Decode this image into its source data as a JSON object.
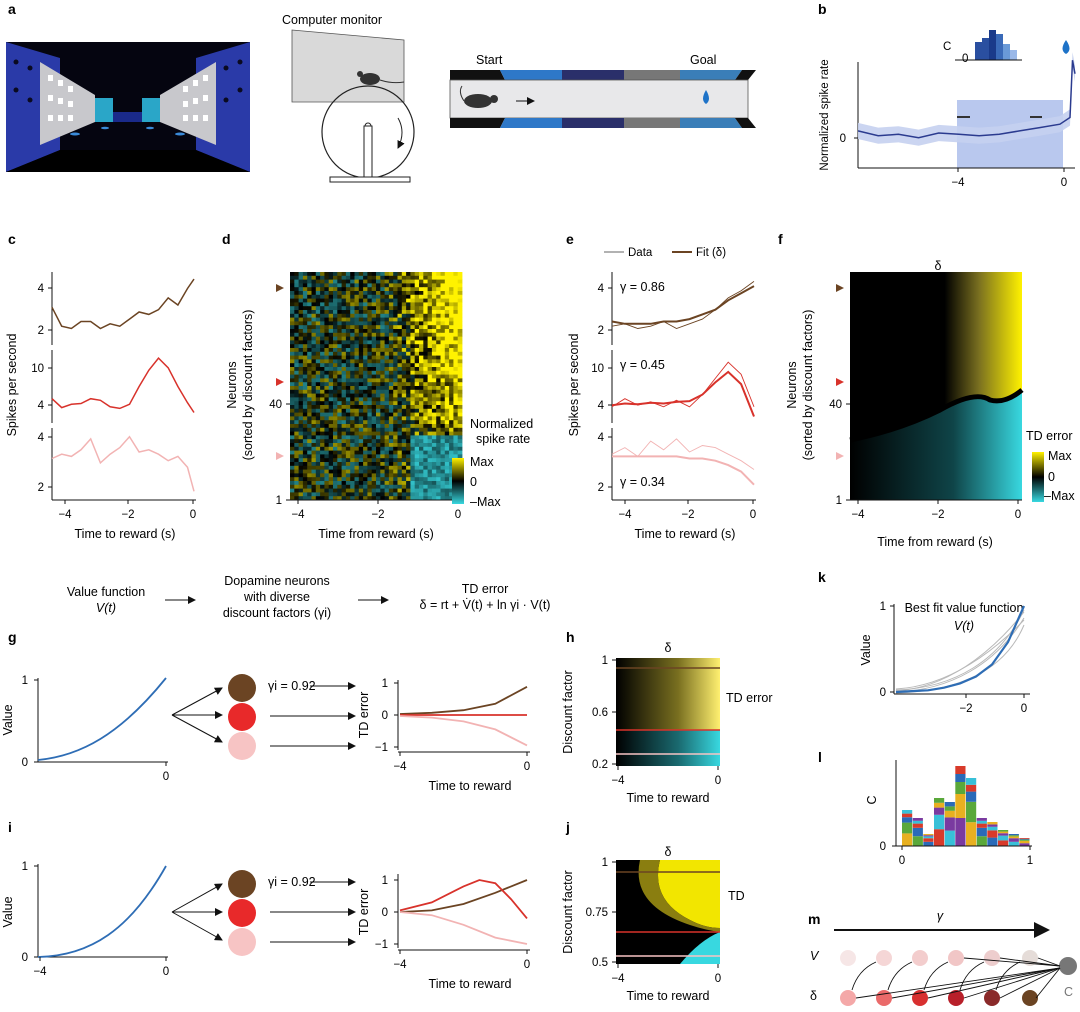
{
  "panels": {
    "a": {
      "letter": "a",
      "monitor_label": "Computer monitor",
      "start_label": "Start",
      "goal_label": "Goal"
    },
    "b": {
      "letter": "b",
      "ylabel": "Normalized spike rate",
      "y_tick": "0",
      "x_ticks": [
        "−4",
        "0"
      ],
      "inset_tick": "0",
      "inset_ylabel": "C"
    },
    "c": {
      "letter": "c",
      "ylabel": "Spikes per second",
      "xlabel": "Time to reward (s)",
      "x_ticks": [
        "−4",
        "−2",
        "0"
      ],
      "sub_yticks": [
        [
          "4",
          "2"
        ],
        [
          "10",
          "4"
        ],
        [
          "4",
          "2"
        ]
      ]
    },
    "d": {
      "letter": "d",
      "ylabel1": "Neurons",
      "ylabel2": "(sorted by discount factors)",
      "y_ticks": [
        "40",
        "1"
      ],
      "xlabel": "Time from reward (s)",
      "x_ticks": [
        "−4",
        "−2",
        "0"
      ],
      "cbar_title1": "Normalized",
      "cbar_title2": "spike rate",
      "cbar_ticks": [
        "Max",
        "0",
        "–Max"
      ]
    },
    "e": {
      "letter": "e",
      "legend_data": "Data",
      "legend_fit": "Fit (δ)",
      "ylabel": "Spikes per second",
      "xlabel": "Time to reward (s)",
      "x_ticks": [
        "−4",
        "−2",
        "0"
      ],
      "gammas": [
        "γ = 0.86",
        "γ = 0.45",
        "γ = 0.34"
      ],
      "sub_yticks": [
        [
          "4",
          "2"
        ],
        [
          "10",
          "4"
        ],
        [
          "4",
          "2"
        ]
      ]
    },
    "f": {
      "letter": "f",
      "top_label": "δ",
      "ylabel1": "Neurons",
      "ylabel2": "(sorted by discount factors)",
      "y_ticks": [
        "40",
        "1"
      ],
      "xlabel": "Time from reward (s)",
      "x_ticks": [
        "−4",
        "−2",
        "0"
      ],
      "cbar_title": "TD error",
      "cbar_ticks": [
        "Max",
        "0",
        "–Max"
      ]
    },
    "flow": {
      "value_fn": "Value function",
      "value_fn_sym": "V(t)",
      "dopa1": "Dopamine neurons",
      "dopa2": "with diverse",
      "dopa3": "discount factors (γi)",
      "td_title": "TD error",
      "td_eq": "δ = rt + V̇(t) + ln γi · V(t)"
    },
    "g": {
      "letter": "g",
      "ylabel": "Value",
      "y_ticks": [
        "1",
        "0"
      ],
      "x_tick": "0",
      "gamma_label": "γi = 0.92",
      "td_ylabel": "TD error",
      "td_yticks": [
        "1",
        "0",
        "−1"
      ],
      "td_xticks": [
        "−4",
        "0"
      ],
      "td_xlabel": "Time to reward"
    },
    "h": {
      "letter": "h",
      "top_label": "δ",
      "ylabel": "Discount factor",
      "y_ticks": [
        "1",
        "0.6",
        "0.2"
      ],
      "x_ticks": [
        "−4",
        "0"
      ],
      "xlabel": "Time to reward",
      "cbar_title": "TD error"
    },
    "i": {
      "letter": "i",
      "ylabel": "Value",
      "y_ticks": [
        "1",
        "0"
      ],
      "x_ticks": [
        "−4",
        "0"
      ],
      "gamma_label": "γi = 0.92",
      "td_ylabel": "TD error",
      "td_yticks": [
        "1",
        "0",
        "−1"
      ],
      "td_xticks": [
        "−4",
        "0"
      ],
      "td_xlabel": "Time to reward"
    },
    "j": {
      "letter": "j",
      "top_label": "δ",
      "ylabel": "Discount factor",
      "y_ticks": [
        "1",
        "0.75",
        "0.5"
      ],
      "x_ticks": [
        "−4",
        "0"
      ],
      "xlabel": "Time to reward",
      "cbar_title": "TD"
    },
    "k": {
      "letter": "k",
      "title": "Best fit value function",
      "subtitle": "V(t)",
      "ylabel": "Value",
      "y_ticks": [
        "1",
        "0"
      ],
      "x_ticks": [
        "−2",
        "0"
      ]
    },
    "l": {
      "letter": "l",
      "ylabel": "C",
      "y_tick": "0",
      "x_ticks": [
        "0",
        "1"
      ]
    },
    "m": {
      "letter": "m",
      "arrow_label": "γ",
      "v_label": "V",
      "d_label": "δ",
      "c_label": "C"
    }
  },
  "chart_data": [
    {
      "panel": "c",
      "type": "line",
      "xlabel": "Time to reward (s)",
      "ylabel": "Spikes per second",
      "x_range": [
        -4.4,
        0
      ],
      "series": [
        {
          "color": "#6b4423",
          "ylim": [
            1.5,
            4.6
          ],
          "x": [
            -4.4,
            -4.1,
            -3.8,
            -3.5,
            -3.2,
            -2.9,
            -2.6,
            -2.3,
            -2.0,
            -1.7,
            -1.4,
            -1.1,
            -0.8,
            -0.5,
            -0.2,
            0
          ],
          "values": [
            3.1,
            2.3,
            2.2,
            2.5,
            2.5,
            2.2,
            2.4,
            2.3,
            2.6,
            2.9,
            2.8,
            3.0,
            3.5,
            3.2,
            3.9,
            4.3
          ]
        },
        {
          "color": "#d8322b",
          "ylim": [
            3,
            12
          ],
          "x": [
            -4.4,
            -4.1,
            -3.8,
            -3.5,
            -3.2,
            -2.9,
            -2.6,
            -2.3,
            -2.0,
            -1.7,
            -1.4,
            -1.1,
            -0.8,
            -0.5,
            -0.2,
            0
          ],
          "values": [
            6.0,
            4.9,
            5.3,
            5.4,
            6.0,
            5.8,
            5.0,
            4.8,
            5.3,
            7.5,
            9.5,
            11.0,
            9.8,
            7.5,
            5.5,
            4.3
          ]
        },
        {
          "color": "#f2b3b3",
          "ylim": [
            1.5,
            4.8
          ],
          "x": [
            -4.4,
            -4.1,
            -3.8,
            -3.5,
            -3.2,
            -2.9,
            -2.6,
            -2.3,
            -2.0,
            -1.7,
            -1.4,
            -1.1,
            -0.8,
            -0.5,
            -0.2,
            0
          ],
          "values": [
            3.4,
            3.6,
            3.5,
            3.8,
            4.3,
            3.2,
            3.6,
            3.9,
            4.4,
            3.7,
            3.8,
            3.6,
            3.3,
            3.5,
            3.0,
            1.9
          ]
        }
      ]
    },
    {
      "panel": "e",
      "type": "line",
      "xlabel": "Time to reward (s)",
      "ylabel": "Spikes per second",
      "x_range": [
        -4.4,
        0
      ],
      "series": [
        {
          "name": "Data",
          "color": "#6b4423",
          "ylim": [
            1.5,
            4.6
          ],
          "x": [
            -4.4,
            -4.0,
            -3.6,
            -3.2,
            -2.8,
            -2.4,
            -2.0,
            -1.6,
            -1.2,
            -0.8,
            -0.4,
            0
          ],
          "values": [
            2.3,
            2.4,
            2.2,
            2.3,
            2.5,
            2.2,
            2.4,
            2.6,
            3.0,
            3.5,
            3.8,
            4.2
          ]
        },
        {
          "name": "Fit (δ)",
          "color": "#6b4423",
          "ylim": [
            1.5,
            4.6
          ],
          "x": [
            -4.4,
            -4.0,
            -3.6,
            -3.2,
            -2.8,
            -2.4,
            -2.0,
            -1.6,
            -1.2,
            -0.8,
            -0.4,
            0
          ],
          "values": [
            2.5,
            2.4,
            2.4,
            2.4,
            2.5,
            2.5,
            2.6,
            2.8,
            3.0,
            3.4,
            3.7,
            4.0
          ]
        },
        {
          "name": "Data",
          "color": "#d8322b",
          "ylim": [
            3,
            12
          ],
          "x": [
            -4.4,
            -4.0,
            -3.6,
            -3.2,
            -2.8,
            -2.4,
            -2.0,
            -1.6,
            -1.2,
            -0.8,
            -0.4,
            0
          ],
          "values": [
            5.0,
            6.0,
            5.2,
            5.6,
            5.0,
            5.8,
            5.0,
            6.5,
            8.5,
            10.5,
            9.0,
            5.0
          ]
        },
        {
          "name": "Fit (δ)",
          "color": "#d8322b",
          "ylim": [
            3,
            12
          ],
          "x": [
            -4.4,
            -4.0,
            -3.6,
            -3.2,
            -2.8,
            -2.4,
            -2.0,
            -1.6,
            -1.2,
            -0.8,
            -0.4,
            0
          ],
          "values": [
            5.2,
            5.4,
            5.3,
            5.5,
            5.4,
            5.6,
            5.7,
            6.5,
            8.0,
            9.3,
            7.8,
            3.8
          ]
        },
        {
          "name": "Data",
          "color": "#f2b3b3",
          "ylim": [
            1.5,
            4.8
          ],
          "x": [
            -4.4,
            -4.0,
            -3.6,
            -3.2,
            -2.8,
            -2.4,
            -2.0,
            -1.6,
            -1.2,
            -0.8,
            -0.4,
            0
          ],
          "values": [
            3.6,
            3.9,
            3.5,
            4.2,
            3.8,
            4.3,
            3.7,
            4.0,
            3.9,
            3.6,
            3.3,
            2.9
          ]
        },
        {
          "name": "Fit (δ)",
          "color": "#f2b3b3",
          "ylim": [
            1.5,
            4.8
          ],
          "x": [
            -4.4,
            -4.0,
            -3.6,
            -3.2,
            -2.8,
            -2.4,
            -2.0,
            -1.6,
            -1.2,
            -0.8,
            -0.4,
            0
          ],
          "values": [
            3.5,
            3.5,
            3.5,
            3.5,
            3.5,
            3.5,
            3.4,
            3.4,
            3.3,
            3.1,
            2.8,
            2.2
          ]
        }
      ]
    },
    {
      "panel": "b",
      "type": "line",
      "ylabel": "Normalized spike rate",
      "x_range": [
        -4.2,
        0.1
      ],
      "series": [
        {
          "color": "#2b3b8f",
          "ylim": [
            -0.6,
            1.3
          ],
          "x": [
            -4.2,
            -3.8,
            -3.4,
            -3.0,
            -2.6,
            -2.2,
            -1.8,
            -1.4,
            -1.0,
            -0.6,
            -0.2,
            0,
            0.05,
            0.1
          ],
          "values": [
            -0.05,
            -0.12,
            -0.1,
            -0.15,
            -0.08,
            -0.1,
            -0.12,
            -0.1,
            -0.05,
            0.0,
            0.05,
            0.15,
            1.0,
            0.8
          ]
        }
      ]
    },
    {
      "panel": "k",
      "type": "line",
      "title": "Best fit value function",
      "ylabel": "Value",
      "x_range": [
        -4,
        0
      ],
      "ylim": [
        0,
        1
      ],
      "series": [
        {
          "color": "#2e6db5",
          "x": [
            -4,
            -3.5,
            -3,
            -2.5,
            -2,
            -1.5,
            -1,
            -0.5,
            0
          ],
          "values": [
            0.0,
            0.01,
            0.02,
            0.05,
            0.1,
            0.18,
            0.32,
            0.58,
            1.0
          ]
        }
      ]
    },
    {
      "panel": "g",
      "type": "line",
      "ylabel": "TD error",
      "x_range": [
        -4,
        0
      ],
      "ylim": [
        -1,
        1
      ],
      "series": [
        {
          "color": "#6b4423",
          "x": [
            -4,
            -3,
            -2,
            -1,
            0
          ],
          "values": [
            0.03,
            0.07,
            0.15,
            0.35,
            0.88
          ]
        },
        {
          "color": "#d8322b",
          "x": [
            -4,
            -3,
            -2,
            -1,
            0
          ],
          "values": [
            0,
            0,
            0,
            0,
            0
          ]
        },
        {
          "color": "#f2b3b3",
          "x": [
            -4,
            -3,
            -2,
            -1,
            0
          ],
          "values": [
            -0.03,
            -0.08,
            -0.2,
            -0.45,
            -0.95
          ]
        }
      ]
    },
    {
      "panel": "i",
      "type": "line",
      "ylabel": "TD error",
      "x_range": [
        -4,
        0
      ],
      "ylim": [
        -1,
        1
      ],
      "series": [
        {
          "color": "#6b4423",
          "x": [
            -4,
            -3,
            -2,
            -1,
            0
          ],
          "values": [
            0.0,
            0.05,
            0.25,
            0.6,
            1.0
          ]
        },
        {
          "color": "#d8322b",
          "x": [
            -4,
            -3,
            -2,
            -1.5,
            -1,
            -0.5,
            0
          ],
          "values": [
            0.05,
            0.3,
            0.8,
            1.0,
            0.9,
            0.4,
            -0.2
          ]
        },
        {
          "color": "#f2b3b3",
          "x": [
            -4,
            -3,
            -2,
            -1,
            0
          ],
          "values": [
            0.0,
            -0.1,
            -0.4,
            -0.8,
            -1.0
          ]
        }
      ]
    },
    {
      "panel": "l",
      "type": "bar",
      "ylabel": "C",
      "x_range": [
        0,
        1
      ],
      "categories": [
        "0.00",
        "0.08",
        "0.16",
        "0.24",
        "0.32",
        "0.40",
        "0.48",
        "0.56",
        "0.64",
        "0.72",
        "0.80",
        "0.88"
      ],
      "values": [
        0.45,
        0.35,
        0.15,
        0.6,
        0.55,
        1.0,
        0.85,
        0.35,
        0.3,
        0.2,
        0.15,
        0.1
      ]
    }
  ]
}
